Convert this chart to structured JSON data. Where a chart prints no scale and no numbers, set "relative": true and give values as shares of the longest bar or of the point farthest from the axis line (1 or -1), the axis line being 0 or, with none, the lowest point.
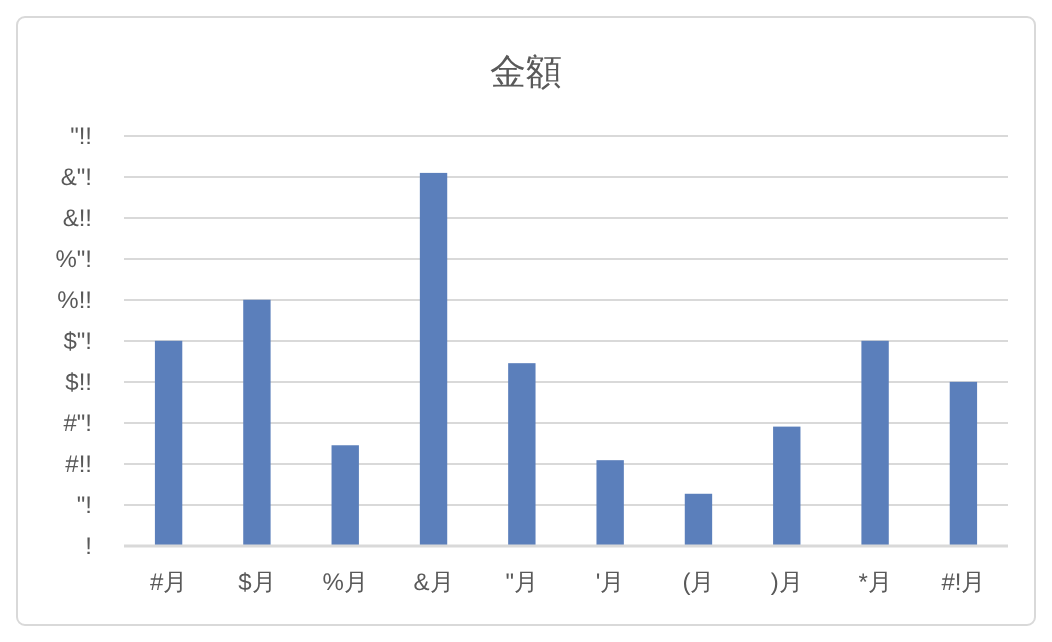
{
  "chart_data": {
    "type": "bar",
    "title": "金額",
    "categories": [
      "#月",
      "$月",
      "%月",
      "&月",
      "\"月",
      "'月",
      "(月",
      ")月",
      "*月",
      "#!月"
    ],
    "values": [
      0.55,
      0.66,
      0.27,
      1,
      0.49,
      0.23,
      0.14,
      0.32,
      0.55,
      0.44
    ],
    "color": "#5b7fbb",
    "relative": true,
    "annotations": [
      "!",
      "\"!",
      "#!!",
      "#\"!",
      "$!!",
      "$\"!",
      "%!!",
      "%\"!",
      "&!!",
      "&\"!",
      "\"!!"
    ],
    "grid": "y"
  }
}
